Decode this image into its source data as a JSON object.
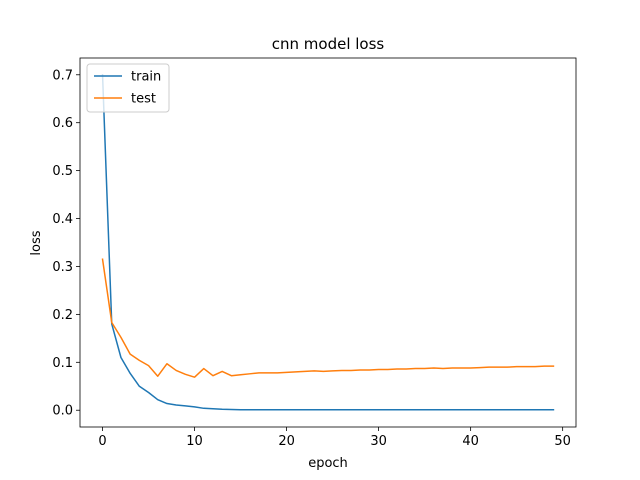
{
  "chart_data": {
    "type": "line",
    "title": "cnn model loss",
    "xlabel": "epoch",
    "ylabel": "loss",
    "xlim": [
      -2.45,
      51.45
    ],
    "ylim": [
      -0.035,
      0.735
    ],
    "xticks": [
      0,
      10,
      20,
      30,
      40,
      50
    ],
    "yticks": [
      0.0,
      0.1,
      0.2,
      0.3,
      0.4,
      0.5,
      0.6,
      0.7
    ],
    "ytick_labels": [
      "0.0",
      "0.1",
      "0.2",
      "0.3",
      "0.4",
      "0.5",
      "0.6",
      "0.7"
    ],
    "grid": false,
    "legend_position": "upper left",
    "x": [
      0,
      1,
      2,
      3,
      4,
      5,
      6,
      7,
      8,
      9,
      10,
      11,
      12,
      13,
      14,
      15,
      16,
      17,
      18,
      19,
      20,
      21,
      22,
      23,
      24,
      25,
      26,
      27,
      28,
      29,
      30,
      31,
      32,
      33,
      34,
      35,
      36,
      37,
      38,
      39,
      40,
      41,
      42,
      43,
      44,
      45,
      46,
      47,
      48,
      49
    ],
    "series": [
      {
        "name": "train",
        "color": "#1f77b4",
        "values": [
          0.7,
          0.18,
          0.11,
          0.077,
          0.05,
          0.037,
          0.022,
          0.014,
          0.011,
          0.009,
          0.007,
          0.004,
          0.003,
          0.002,
          0.0015,
          0.001,
          0.001,
          0.001,
          0.001,
          0.001,
          0.001,
          0.001,
          0.001,
          0.001,
          0.001,
          0.001,
          0.001,
          0.001,
          0.001,
          0.001,
          0.001,
          0.001,
          0.001,
          0.001,
          0.001,
          0.001,
          0.001,
          0.001,
          0.001,
          0.001,
          0.001,
          0.001,
          0.001,
          0.001,
          0.001,
          0.001,
          0.001,
          0.001,
          0.001,
          0.001
        ]
      },
      {
        "name": "test",
        "color": "#ff7f0e",
        "values": [
          0.315,
          0.183,
          0.152,
          0.117,
          0.104,
          0.093,
          0.071,
          0.097,
          0.083,
          0.075,
          0.069,
          0.087,
          0.072,
          0.081,
          0.072,
          0.074,
          0.076,
          0.078,
          0.078,
          0.078,
          0.079,
          0.08,
          0.081,
          0.082,
          0.081,
          0.082,
          0.083,
          0.083,
          0.084,
          0.084,
          0.085,
          0.085,
          0.086,
          0.086,
          0.087,
          0.087,
          0.088,
          0.087,
          0.088,
          0.088,
          0.088,
          0.089,
          0.09,
          0.09,
          0.09,
          0.091,
          0.091,
          0.091,
          0.092,
          0.092
        ]
      }
    ]
  }
}
